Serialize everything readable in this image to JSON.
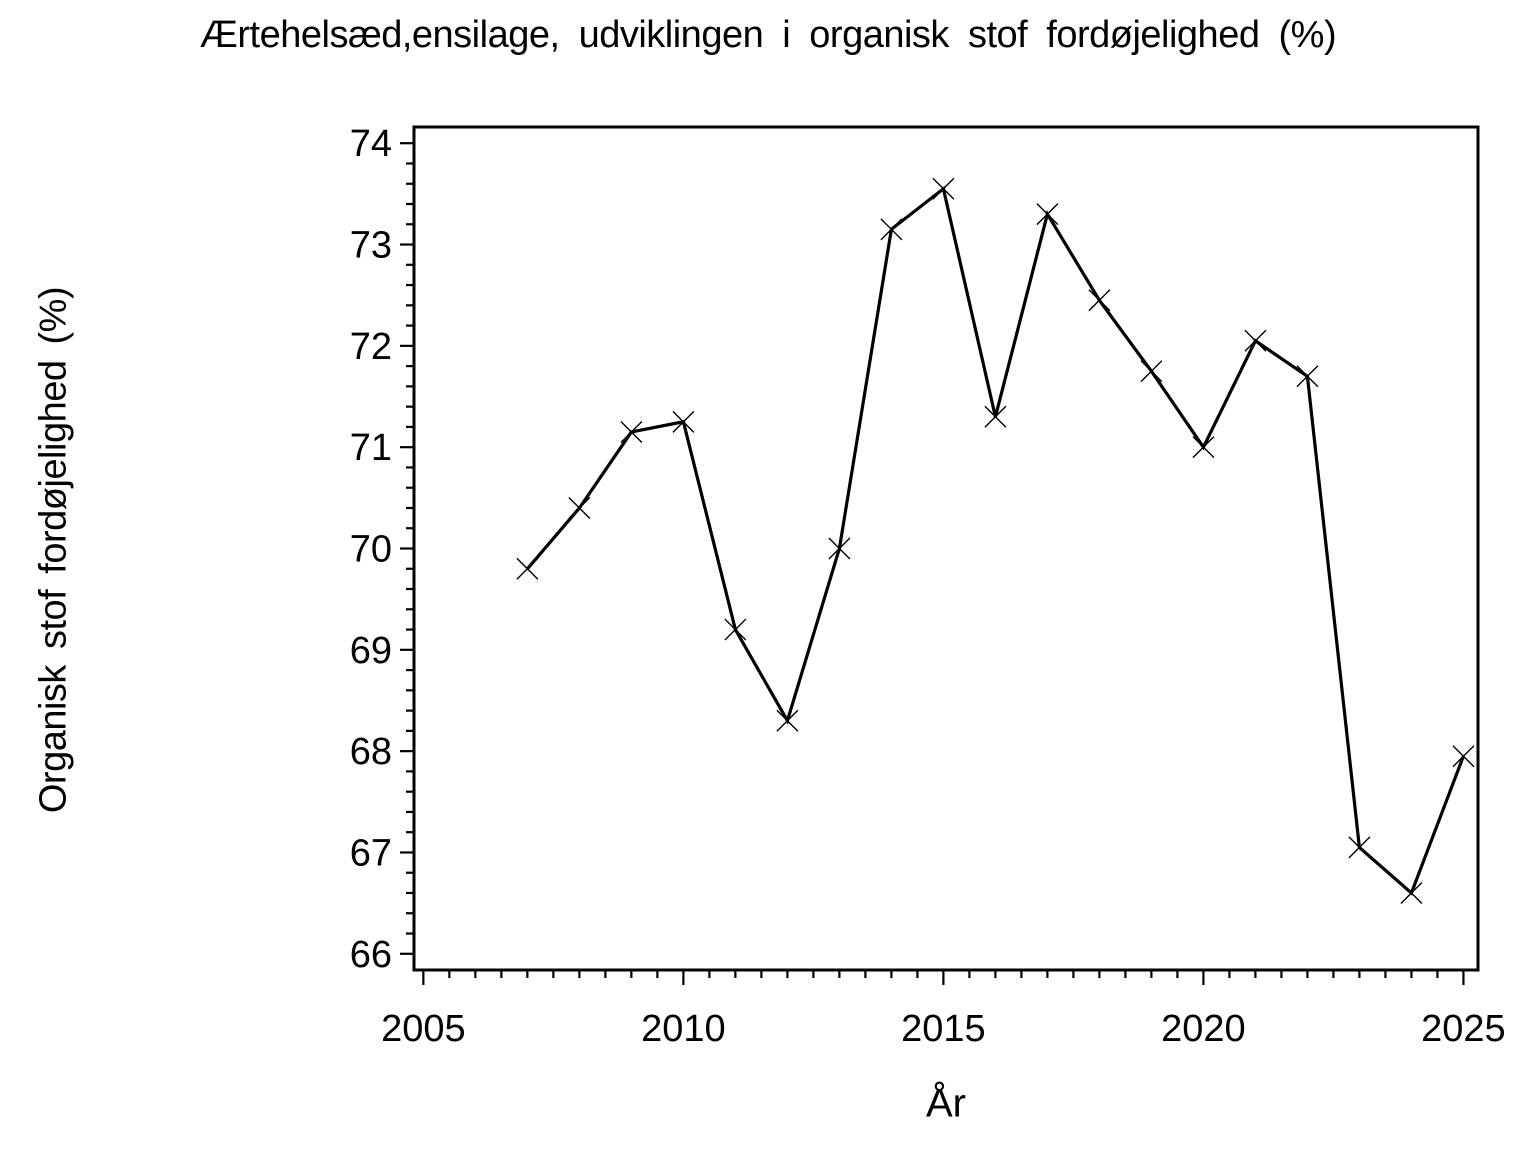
{
  "chart_data": {
    "type": "line",
    "title": "Ærtehelsæd,ensilage, udviklingen i organisk stof fordøjelighed (%)",
    "xlabel": "År",
    "ylabel": "Organisk stof fordøjelighed (%)",
    "x": [
      2007,
      2008,
      2009,
      2010,
      2011,
      2012,
      2013,
      2014,
      2015,
      2016,
      2017,
      2018,
      2019,
      2020,
      2021,
      2022,
      2023,
      2024,
      2025
    ],
    "values": [
      69.8,
      70.4,
      71.15,
      71.25,
      69.2,
      68.3,
      70.0,
      73.15,
      73.55,
      71.3,
      73.3,
      72.45,
      71.75,
      71.0,
      72.05,
      71.7,
      67.05,
      66.6,
      67.95
    ],
    "xlim": [
      2004.82,
      2025.28
    ],
    "ylim": [
      65.84,
      74.16
    ],
    "x_major_ticks": [
      2005,
      2010,
      2015,
      2020,
      2025
    ],
    "x_minor_step": 0.5,
    "y_major_ticks": [
      66,
      67,
      68,
      69,
      70,
      71,
      72,
      73,
      74
    ],
    "y_minor_step": 0.2,
    "marker": "x-cross",
    "line_color": "#000000",
    "axis_color": "#000000",
    "background_color": "#ffffff",
    "grid": false,
    "legend": false
  }
}
